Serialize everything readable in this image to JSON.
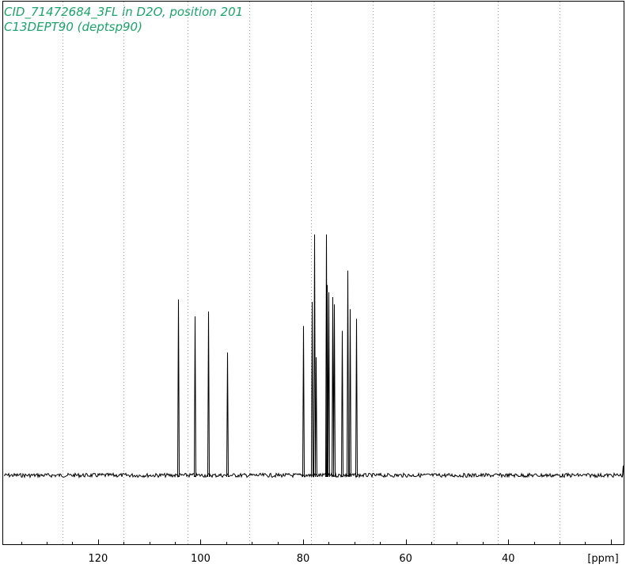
{
  "header": {
    "line1": "CID_71472684_3FL in D2O, position 201",
    "line2": "C13DEPT90 (deptsp90)"
  },
  "colors": {
    "title": "#1aa46a",
    "spectrum": "#000000",
    "grid": "#9a9a9a",
    "frame": "#000000"
  },
  "chart_data": {
    "type": "line",
    "title": "",
    "xlabel": "[ppm]",
    "ylabel": "",
    "xlim": [
      138.5,
      17.5
    ],
    "x_reversed": true,
    "ylim": [
      -0.18,
      1.1
    ],
    "grid": "vertical dotted",
    "xticks": [
      120,
      100,
      80,
      60,
      40
    ],
    "tick_labels": [
      "120",
      "100",
      "80",
      "60",
      "40"
    ],
    "grid_x": [
      127,
      115,
      102.5,
      90.5,
      78.5,
      66.5,
      54.5,
      42,
      30
    ],
    "series": [
      {
        "peaks": [
          {
            "ppm": 104.4,
            "height": 0.73
          },
          {
            "ppm": 101.2,
            "height": 0.66
          },
          {
            "ppm": 98.5,
            "height": 0.68
          },
          {
            "ppm": 94.8,
            "height": 0.51
          },
          {
            "ppm": 80.0,
            "height": 0.62
          },
          {
            "ppm": 78.3,
            "height": 0.72
          },
          {
            "ppm": 77.9,
            "height": 1.0
          },
          {
            "ppm": 77.6,
            "height": 0.49
          },
          {
            "ppm": 75.6,
            "height": 1.0
          },
          {
            "ppm": 75.4,
            "height": 0.79
          },
          {
            "ppm": 75.1,
            "height": 0.76
          },
          {
            "ppm": 74.3,
            "height": 0.74
          },
          {
            "ppm": 74.0,
            "height": 0.71
          },
          {
            "ppm": 72.4,
            "height": 0.6
          },
          {
            "ppm": 71.3,
            "height": 0.85
          },
          {
            "ppm": 70.9,
            "height": 0.69
          },
          {
            "ppm": 69.6,
            "height": 0.65
          },
          {
            "ppm": 17.7,
            "height": 0.04
          }
        ],
        "baseline": 0.0
      }
    ]
  }
}
